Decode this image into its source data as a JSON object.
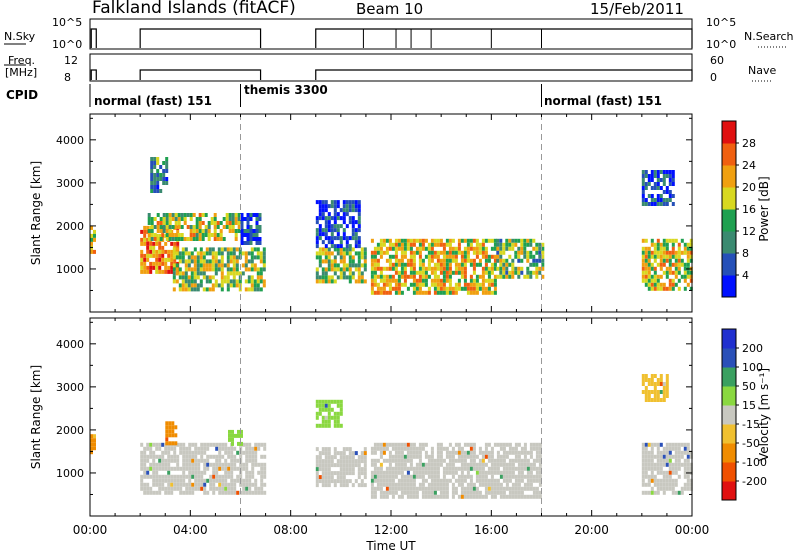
{
  "header": {
    "station": "Falkland Islands (fitACF)",
    "beam": "Beam 10",
    "date": "15/Feb/2011"
  },
  "top_panels": {
    "nsky_label": "N.Sky",
    "nsky_ticks": [
      "10^5",
      "10^0"
    ],
    "nsearch_label": "N.Search",
    "nsearch_ticks": [
      "10^5",
      "10^0"
    ],
    "freq_label_line1": "Freq.",
    "freq_label_line2": "[MHz]",
    "freq_ticks": [
      "12",
      "8"
    ],
    "nave_label": "Nave",
    "nave_ticks": [
      "60",
      "0"
    ],
    "cpid_label": "CPID",
    "cpid_segments": [
      {
        "label": "normal (fast) 151",
        "start_hour": 0.0
      },
      {
        "label": "themis 3300",
        "start_hour": 6.0
      },
      {
        "label": "normal (fast) 151",
        "start_hour": 18.0
      }
    ]
  },
  "colors": {
    "power_scale": [
      "#0010ff",
      "#2550b8",
      "#3a8a70",
      "#1fa050",
      "#d8d820",
      "#f0a010",
      "#f06010",
      "#e01010"
    ],
    "velocity_scale": [
      "#e01010",
      "#f05000",
      "#f08c00",
      "#f0c030",
      "#c8c8c0",
      "#8ad840",
      "#3aa060",
      "#2a50b8",
      "#2030d0"
    ]
  },
  "chart_data": [
    {
      "type": "heatmap",
      "title": "Power",
      "ylabel": "Slant Range [km]",
      "xlabel": "",
      "x_ticks": [],
      "y_ticks": [
        "1000",
        "2000",
        "3000",
        "4000"
      ],
      "colorbar_label": "Power [dB]",
      "colorbar_ticks": [
        "4",
        "8",
        "12",
        "16",
        "20",
        "24",
        "28"
      ],
      "colorbar_range": [
        0,
        32
      ],
      "regions": [
        {
          "x0": 0.0,
          "x1": 0.2,
          "y0": 1400,
          "y1": 2000,
          "level": 0.65
        },
        {
          "x0": 2.0,
          "x1": 3.5,
          "y0": 900,
          "y1": 2000,
          "level": 0.75
        },
        {
          "x0": 2.3,
          "x1": 6.0,
          "y0": 1700,
          "y1": 2300,
          "level": 0.55
        },
        {
          "x0": 3.3,
          "x1": 7.0,
          "y0": 500,
          "y1": 1500,
          "level": 0.5
        },
        {
          "x0": 2.4,
          "x1": 3.0,
          "y0": 2800,
          "y1": 3600,
          "level": 0.3
        },
        {
          "x0": 6.0,
          "x1": 6.8,
          "y0": 1600,
          "y1": 2300,
          "level": 0.15
        },
        {
          "x0": 9.0,
          "x1": 11.0,
          "y0": 700,
          "y1": 1500,
          "level": 0.5
        },
        {
          "x0": 9.0,
          "x1": 10.7,
          "y0": 1500,
          "y1": 2600,
          "level": 0.12
        },
        {
          "x0": 11.2,
          "x1": 16.2,
          "y0": 400,
          "y1": 1700,
          "level": 0.62
        },
        {
          "x0": 16.2,
          "x1": 18.0,
          "y0": 800,
          "y1": 1700,
          "level": 0.45
        },
        {
          "x0": 22.0,
          "x1": 24.0,
          "y0": 500,
          "y1": 1700,
          "level": 0.6
        },
        {
          "x0": 22.0,
          "x1": 23.2,
          "y0": 2500,
          "y1": 3300,
          "level": 0.15
        }
      ]
    },
    {
      "type": "heatmap",
      "title": "Velocity",
      "ylabel": "Slant Range [km]",
      "xlabel": "Time UT",
      "x_ticks": [
        "00:00",
        "04:00",
        "08:00",
        "12:00",
        "16:00",
        "20:00",
        "00:00"
      ],
      "y_ticks": [
        "1000",
        "2000",
        "3000",
        "4000"
      ],
      "colorbar_label": "Velocity [m s⁻¹]",
      "colorbar_ticks": [
        "-200",
        "-100",
        "-50",
        "-15",
        "15",
        "50",
        "100",
        "200"
      ],
      "regions": [
        {
          "x0": 0.0,
          "x1": 0.2,
          "y0": 1500,
          "y1": 1900,
          "velocity": -60
        },
        {
          "x0": 2.0,
          "x1": 7.0,
          "y0": 500,
          "y1": 1700,
          "velocity": 0
        },
        {
          "x0": 3.0,
          "x1": 3.4,
          "y0": 1700,
          "y1": 2200,
          "velocity": -60
        },
        {
          "x0": 5.5,
          "x1": 6.0,
          "y0": 1700,
          "y1": 2000,
          "velocity": 40
        },
        {
          "x0": 9.0,
          "x1": 11.0,
          "y0": 700,
          "y1": 1600,
          "velocity": 0
        },
        {
          "x0": 9.0,
          "x1": 10.0,
          "y0": 2100,
          "y1": 2700,
          "velocity": 40
        },
        {
          "x0": 11.2,
          "x1": 18.0,
          "y0": 400,
          "y1": 1700,
          "velocity": 0
        },
        {
          "x0": 22.0,
          "x1": 24.0,
          "y0": 500,
          "y1": 1700,
          "velocity": 0
        },
        {
          "x0": 22.0,
          "x1": 23.0,
          "y0": 2700,
          "y1": 3300,
          "velocity": -30
        }
      ]
    }
  ]
}
